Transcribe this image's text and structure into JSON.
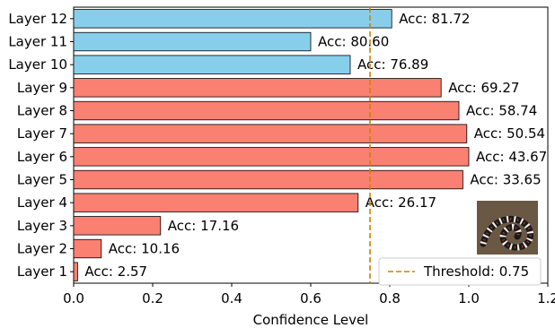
{
  "chart_data": {
    "type": "bar",
    "orientation": "horizontal",
    "title": "",
    "xlabel": "Confidence Level",
    "ylabel": "",
    "xlim": [
      0,
      1.2
    ],
    "xticks": [
      0.0,
      0.2,
      0.4,
      0.6,
      0.8,
      1.0,
      1.2
    ],
    "xtick_labels": [
      "0.0",
      "0.2",
      "0.4",
      "0.6",
      "0.8",
      "1.0",
      "1.2"
    ],
    "grid": false,
    "legend_position": "bottom-right",
    "categories": [
      "Layer 1",
      "Layer 2",
      "Layer 3",
      "Layer 4",
      "Layer 5",
      "Layer 6",
      "Layer 7",
      "Layer 8",
      "Layer 9",
      "Layer 10",
      "Layer 11",
      "Layer 12"
    ],
    "values": [
      0.01,
      0.07,
      0.22,
      0.72,
      0.985,
      1.0,
      0.995,
      0.975,
      0.93,
      0.7,
      0.6,
      0.805
    ],
    "annotations": [
      "Acc: 2.57",
      "Acc: 10.16",
      "Acc: 17.16",
      "Acc: 26.17",
      "Acc: 33.65",
      "Acc: 43.67",
      "Acc: 50.54",
      "Acc: 58.74",
      "Acc: 69.27",
      "Acc: 76.89",
      "Acc: 80.60",
      "Acc: 81.72"
    ],
    "bar_colors": [
      "#fa8072",
      "#fa8072",
      "#fa8072",
      "#fa8072",
      "#fa8072",
      "#fa8072",
      "#fa8072",
      "#fa8072",
      "#fa8072",
      "#87ceeb",
      "#87ceeb",
      "#87ceeb"
    ],
    "threshold": {
      "value": 0.75,
      "label": "Threshold: 0.75",
      "color": "#cc8400"
    },
    "inset_image": "snake-photo"
  }
}
